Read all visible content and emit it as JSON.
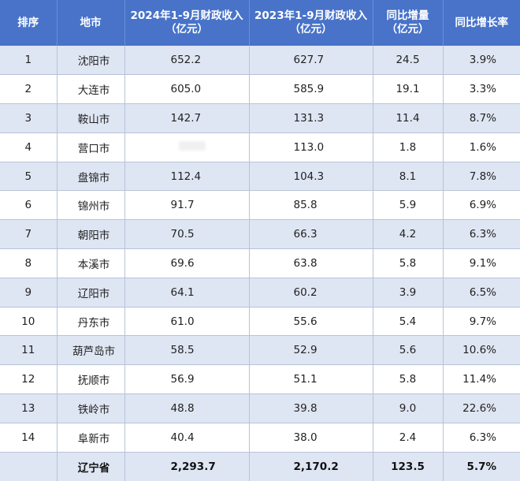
{
  "header": {
    "rank": "排序",
    "city": "地市",
    "rev2024_line1": "2024年1-9月财政收入",
    "rev2024_line2": "（亿元）",
    "rev2023_line1": "2023年1-9月财政收入",
    "rev2023_line2": "（亿元）",
    "increase_line1": "同比增量",
    "increase_line2": "（亿元）",
    "growth": "同比增长率"
  },
  "rows": [
    {
      "rank": "1",
      "city": "沈阳市",
      "rev2024": "652.2",
      "rev2023": "627.7",
      "increase": "24.5",
      "growth": "3.9%"
    },
    {
      "rank": "2",
      "city": "大连市",
      "rev2024": "605.0",
      "rev2023": "585.9",
      "increase": "19.1",
      "growth": "3.3%"
    },
    {
      "rank": "3",
      "city": "鞍山市",
      "rev2024": "142.7",
      "rev2023": "131.3",
      "increase": "11.4",
      "growth": "8.7%"
    },
    {
      "rank": "4",
      "city": "营口市",
      "rev2024": "",
      "rev2023": "113.0",
      "increase": "1.8",
      "growth": "1.6%"
    },
    {
      "rank": "5",
      "city": "盘锦市",
      "rev2024": "112.4",
      "rev2023": "104.3",
      "increase": "8.1",
      "growth": "7.8%"
    },
    {
      "rank": "6",
      "city": "锦州市",
      "rev2024": "91.7",
      "rev2023": "85.8",
      "increase": "5.9",
      "growth": "6.9%"
    },
    {
      "rank": "7",
      "city": "朝阳市",
      "rev2024": "70.5",
      "rev2023": "66.3",
      "increase": "4.2",
      "growth": "6.3%"
    },
    {
      "rank": "8",
      "city": "本溪市",
      "rev2024": "69.6",
      "rev2023": "63.8",
      "increase": "5.8",
      "growth": "9.1%"
    },
    {
      "rank": "9",
      "city": "辽阳市",
      "rev2024": "64.1",
      "rev2023": "60.2",
      "increase": "3.9",
      "growth": "6.5%"
    },
    {
      "rank": "10",
      "city": "丹东市",
      "rev2024": "61.0",
      "rev2023": "55.6",
      "increase": "5.4",
      "growth": "9.7%"
    },
    {
      "rank": "11",
      "city": "葫芦岛市",
      "rev2024": "58.5",
      "rev2023": "52.9",
      "increase": "5.6",
      "growth": "10.6%"
    },
    {
      "rank": "12",
      "city": "抚顺市",
      "rev2024": "56.9",
      "rev2023": "51.1",
      "increase": "5.8",
      "growth": "11.4%"
    },
    {
      "rank": "13",
      "city": "铁岭市",
      "rev2024": "48.8",
      "rev2023": "39.8",
      "increase": "9.0",
      "growth": "22.6%"
    },
    {
      "rank": "14",
      "city": "阜新市",
      "rev2024": "40.4",
      "rev2023": "38.0",
      "increase": "2.4",
      "growth": "6.3%"
    }
  ],
  "total": {
    "city": "辽宁省",
    "rev2024": "2,293.7",
    "rev2023": "2,170.2",
    "increase": "123.5",
    "growth": "5.7%"
  },
  "colors": {
    "header_bg": "#4873c9",
    "header_text": "#ffffff",
    "shaded_row": "#dfe6f3",
    "border": "#b7c3d8"
  }
}
